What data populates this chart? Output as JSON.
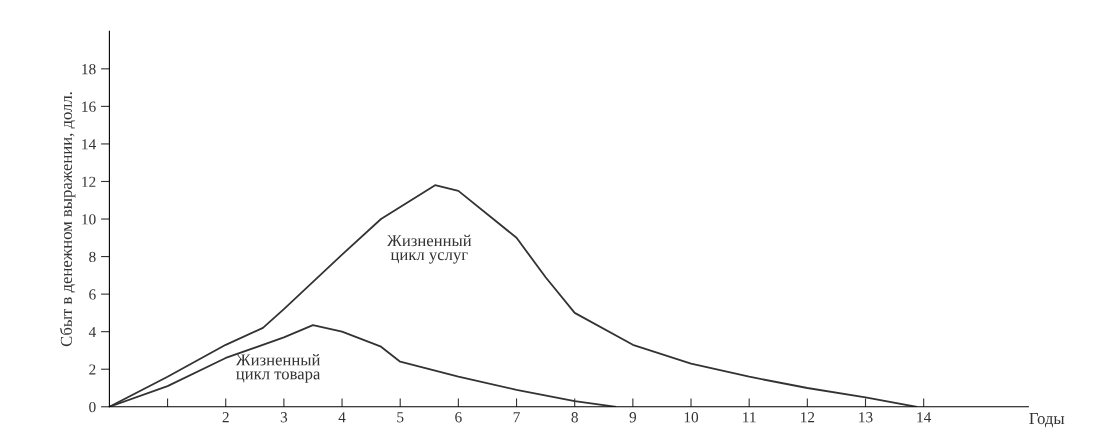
{
  "chart_data": {
    "type": "line",
    "xlabel": "Годы",
    "ylabel": "Сбыт в денежном выражении, долл.",
    "series": [
      {
        "name": "Жизненный\nцикл услуг",
        "color": "#333333",
        "x": [
          0,
          1,
          2,
          2.64,
          3,
          4,
          4.67,
          5.6,
          6,
          7,
          7.5,
          8,
          9,
          10,
          11,
          12,
          13,
          13.87
        ],
        "values": [
          0,
          1.6,
          3.3,
          4.2,
          5.2,
          8.1,
          10.0,
          11.8,
          11.5,
          9.0,
          6.9,
          5.0,
          3.3,
          2.3,
          1.6,
          1.0,
          0.5,
          0
        ]
      },
      {
        "name": "Жизненный\nцикл товара",
        "color": "#333333",
        "x": [
          0,
          1,
          2,
          3,
          3.5,
          4,
          4.67,
          5,
          6,
          7,
          8,
          8.7
        ],
        "values": [
          0,
          1.1,
          2.6,
          3.7,
          4.35,
          4.0,
          3.2,
          2.4,
          1.6,
          0.9,
          0.3,
          0
        ]
      }
    ],
    "xlim": [
      0,
      15.8
    ],
    "ylim": [
      0,
      20
    ],
    "xticks": [
      {
        "value": 1,
        "label": null
      },
      2,
      3,
      4,
      5,
      6,
      7,
      8,
      9,
      10,
      11,
      12,
      13,
      14
    ],
    "yticks": [
      0,
      2,
      4,
      6,
      8,
      10,
      12,
      14,
      16,
      18
    ],
    "grid": false,
    "legend": false,
    "marker": "none",
    "line_style": "solid"
  }
}
